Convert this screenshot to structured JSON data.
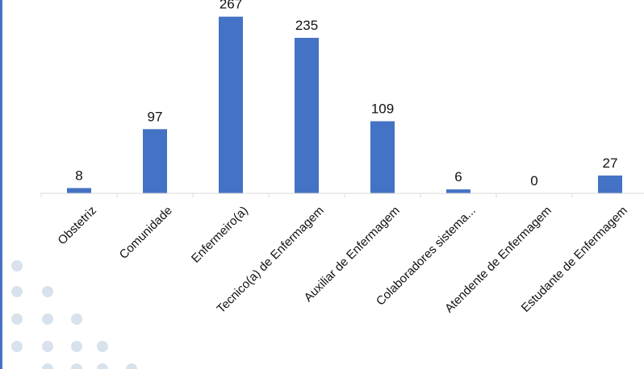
{
  "chart_data": {
    "type": "bar",
    "title": "",
    "xlabel": "",
    "ylabel": "",
    "categories": [
      "Obstetriz",
      "Comunidade",
      "Enfermeiro(a)",
      "Tecnico(a) de Enfermagem",
      "Auxiliar de Enfermagem",
      "Colaboradores sistema...",
      "Atendente de Enfermagem",
      "Estudante de Enfermagem"
    ],
    "values": [
      8,
      97,
      267,
      235,
      109,
      6,
      0,
      27
    ],
    "ylim": [
      0,
      280
    ],
    "grid": false,
    "legend": "none",
    "bar_color": "#4472c4",
    "axis_color": "#d9d9d9"
  }
}
